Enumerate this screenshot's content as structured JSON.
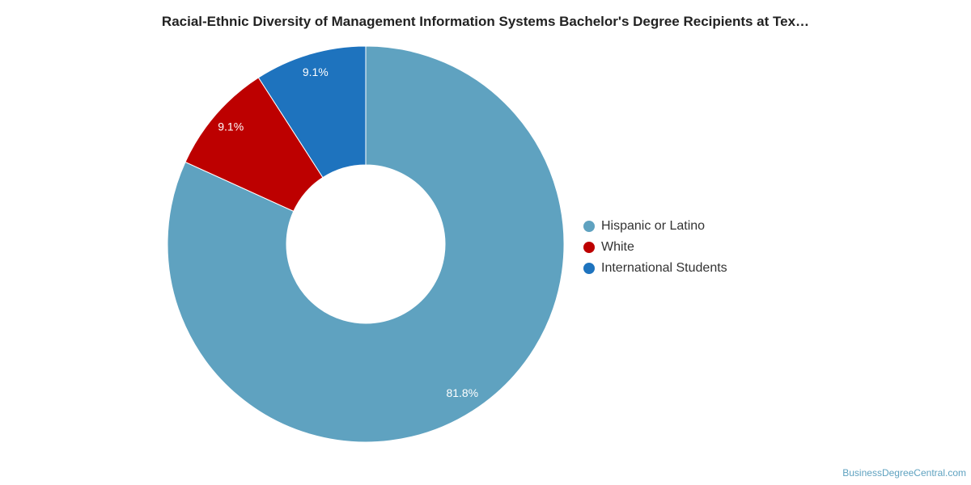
{
  "chart_data": {
    "type": "pie",
    "title": "Racial-Ethnic Diversity of Management Information Systems Bachelor's Degree Recipients at Tex…",
    "donut": true,
    "categories": [
      "Hispanic or Latino",
      "White",
      "International Students"
    ],
    "values": [
      81.8,
      9.1,
      9.1
    ],
    "labels": [
      "81.8%",
      "9.1%",
      "9.1%"
    ],
    "colors": [
      "#5fa2c0",
      "#bd0000",
      "#1e73be"
    ],
    "legend_position": "right"
  },
  "watermark": "BusinessDegreeCentral.com"
}
